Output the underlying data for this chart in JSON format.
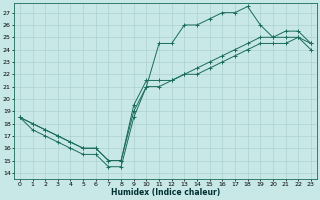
{
  "xlabel": "Humidex (Indice chaleur)",
  "ylabel": "",
  "background_color": "#c8e8e8",
  "grid_color": "#afd0d0",
  "line_color": "#1a6b5a",
  "xlim": [
    -0.5,
    23.5
  ],
  "ylim": [
    13.5,
    27.8
  ],
  "yticks": [
    14,
    15,
    16,
    17,
    18,
    19,
    20,
    21,
    22,
    23,
    24,
    25,
    26,
    27
  ],
  "xticks": [
    0,
    1,
    2,
    3,
    4,
    5,
    6,
    7,
    8,
    9,
    10,
    11,
    12,
    13,
    14,
    15,
    16,
    17,
    18,
    19,
    20,
    21,
    22,
    23
  ],
  "line1_x": [
    0,
    1,
    2,
    3,
    4,
    5,
    6,
    7,
    8,
    9,
    10,
    11,
    12,
    13,
    14,
    15,
    16,
    17,
    18,
    19,
    20,
    21,
    22,
    23
  ],
  "line1_y": [
    18.5,
    17.5,
    17.0,
    16.5,
    16.0,
    15.5,
    15.5,
    14.5,
    14.5,
    18.5,
    21.0,
    24.5,
    24.5,
    26.0,
    26.0,
    26.5,
    27.0,
    27.0,
    27.5,
    26.0,
    25.0,
    25.0,
    25.0,
    24.5
  ],
  "line2_x": [
    0,
    1,
    2,
    3,
    4,
    5,
    6,
    7,
    8,
    9,
    10,
    11,
    12,
    13,
    14,
    15,
    16,
    17,
    18,
    19,
    20,
    21,
    22,
    23
  ],
  "line2_y": [
    18.5,
    18.0,
    17.5,
    17.0,
    16.5,
    16.0,
    16.0,
    15.0,
    15.0,
    19.5,
    21.5,
    21.5,
    21.5,
    22.0,
    22.5,
    23.0,
    23.5,
    24.0,
    24.5,
    25.0,
    25.0,
    25.5,
    25.5,
    24.5
  ],
  "line3_x": [
    0,
    1,
    2,
    3,
    4,
    5,
    6,
    7,
    8,
    9,
    10,
    11,
    12,
    13,
    14,
    15,
    16,
    17,
    18,
    19,
    20,
    21,
    22,
    23
  ],
  "line3_y": [
    18.5,
    18.0,
    17.5,
    17.0,
    16.5,
    16.0,
    16.0,
    15.0,
    15.0,
    19.0,
    21.0,
    21.0,
    21.5,
    22.0,
    22.0,
    22.5,
    23.0,
    23.5,
    24.0,
    24.5,
    24.5,
    24.5,
    25.0,
    24.0
  ],
  "tick_fontsize": 4.5,
  "xlabel_fontsize": 5.5
}
